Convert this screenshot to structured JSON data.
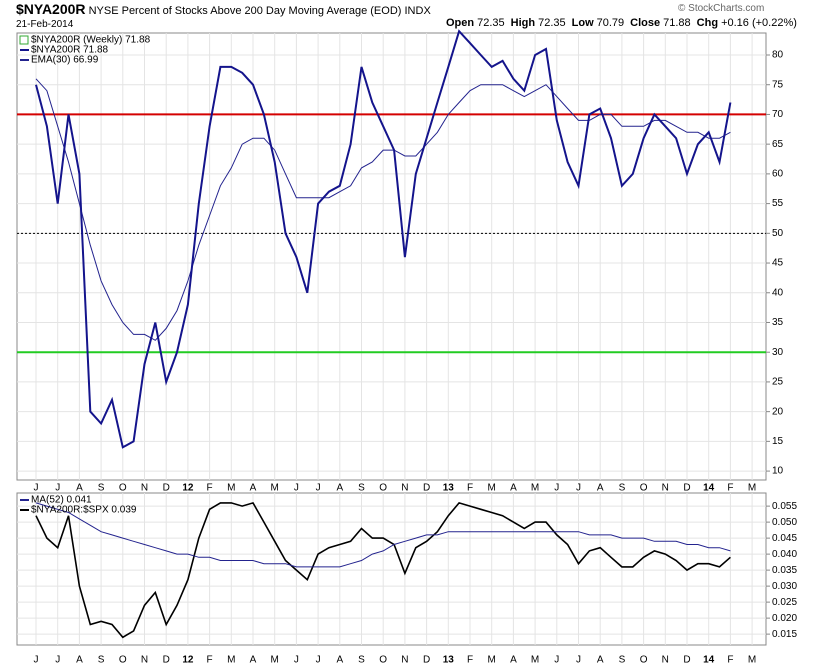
{
  "header": {
    "symbol": "$NYA200R",
    "description": "NYSE Percent of Stocks Above 200 Day Moving Average (EOD)",
    "exchange": "INDX",
    "date": "21-Feb-2014",
    "quote": [
      {
        "label": "Open",
        "value": "72.35"
      },
      {
        "label": "High",
        "value": "72.35"
      },
      {
        "label": "Low",
        "value": "70.79"
      },
      {
        "label": "Close",
        "value": "71.88"
      },
      {
        "label": "Chg",
        "value": "+0.16 (+0.22%)"
      }
    ],
    "credit": "© StockCharts.com"
  },
  "chart_data": [
    {
      "type": "line",
      "title": "$NYA200R (Weekly) 71.88",
      "categories": [
        "J",
        null,
        "J",
        null,
        "A",
        null,
        "S",
        null,
        "O",
        null,
        "N",
        null,
        "D",
        null,
        "12",
        null,
        "F",
        null,
        "M",
        null,
        "A",
        null,
        "M",
        null,
        "J",
        null,
        "J",
        null,
        "A",
        null,
        "S",
        null,
        "O",
        null,
        "N",
        null,
        "D",
        null,
        "13",
        null,
        "F",
        null,
        "M",
        null,
        "A",
        null,
        "M",
        null,
        "J",
        null,
        "J",
        null,
        "A",
        null,
        "S",
        null,
        "O",
        null,
        "N",
        null,
        "D",
        null,
        "14",
        null,
        "F",
        null,
        "M",
        null
      ],
      "series": [
        {
          "name": "EMA(30) 66.99",
          "color": "#23238e",
          "width": 1,
          "values": [
            76,
            74,
            68,
            62,
            55,
            48,
            42,
            38,
            35,
            33,
            33,
            32,
            34,
            37,
            42,
            48,
            53,
            58,
            61,
            65,
            66,
            66,
            64,
            60,
            56,
            56,
            56,
            56,
            57,
            58,
            61,
            62,
            64,
            64,
            63,
            63,
            65,
            67,
            70,
            72,
            74,
            75,
            75,
            75,
            74,
            73,
            74,
            75,
            73,
            71,
            69,
            69,
            70,
            70,
            68,
            68,
            68,
            69,
            69,
            68,
            67,
            67,
            66,
            66,
            67,
            null,
            null,
            null
          ]
        },
        {
          "name": "$NYA200R 71.88",
          "color": "#14148c",
          "width": 2,
          "values": [
            75,
            68,
            55,
            70,
            60,
            20,
            18,
            22,
            14,
            15,
            28,
            35,
            25,
            30,
            38,
            55,
            68,
            78,
            78,
            77,
            75,
            70,
            62,
            50,
            46,
            40,
            55,
            57,
            58,
            65,
            78,
            72,
            68,
            64,
            46,
            60,
            66,
            72,
            78,
            84,
            82,
            80,
            78,
            79,
            76,
            74,
            80,
            81,
            69,
            62,
            58,
            70,
            71,
            66,
            58,
            60,
            66,
            70,
            68,
            66,
            60,
            65,
            67,
            62,
            72,
            null,
            null,
            null
          ]
        }
      ],
      "ylim": [
        8.5,
        83.7
      ],
      "yticks": [
        10,
        15,
        20,
        25,
        30,
        35,
        40,
        45,
        50,
        55,
        60,
        65,
        70,
        75,
        80
      ],
      "reference_lines": [
        {
          "value": 70,
          "color": "#d40000",
          "style": "solid"
        },
        {
          "value": 50,
          "color": "#000000",
          "style": "dotted"
        },
        {
          "value": 30,
          "color": "#22cc22",
          "style": "solid"
        }
      ]
    },
    {
      "type": "line",
      "title": null,
      "categories": [
        "J",
        null,
        "J",
        null,
        "A",
        null,
        "S",
        null,
        "O",
        null,
        "N",
        null,
        "D",
        null,
        "12",
        null,
        "F",
        null,
        "M",
        null,
        "A",
        null,
        "M",
        null,
        "J",
        null,
        "J",
        null,
        "A",
        null,
        "S",
        null,
        "O",
        null,
        "N",
        null,
        "D",
        null,
        "13",
        null,
        "F",
        null,
        "M",
        null,
        "A",
        null,
        "M",
        null,
        "J",
        null,
        "J",
        null,
        "A",
        null,
        "S",
        null,
        "O",
        null,
        "N",
        null,
        "D",
        null,
        "14",
        null,
        "F",
        null,
        "M",
        null
      ],
      "series": [
        {
          "name": "$NYA200R:$SPX 0.039",
          "color": "#000000",
          "width": 1.6,
          "values": [
            0.052,
            0.045,
            0.042,
            0.052,
            0.03,
            0.018,
            0.019,
            0.018,
            0.014,
            0.016,
            0.024,
            0.028,
            0.018,
            0.024,
            0.032,
            0.045,
            0.054,
            0.056,
            0.056,
            0.055,
            0.056,
            0.05,
            0.044,
            0.038,
            0.035,
            0.032,
            0.04,
            0.042,
            0.043,
            0.044,
            0.048,
            0.045,
            0.045,
            0.043,
            0.034,
            0.042,
            0.044,
            0.047,
            0.052,
            0.056,
            0.055,
            0.054,
            0.053,
            0.052,
            0.05,
            0.048,
            0.05,
            0.05,
            0.046,
            0.043,
            0.037,
            0.041,
            0.042,
            0.039,
            0.036,
            0.036,
            0.039,
            0.041,
            0.04,
            0.038,
            0.035,
            0.037,
            0.037,
            0.036,
            0.039,
            null,
            null,
            null
          ]
        },
        {
          "name": "MA(52) 0.041",
          "color": "#23238e",
          "width": 1,
          "values": [
            0.056,
            0.055,
            0.054,
            0.053,
            0.051,
            0.049,
            0.047,
            0.046,
            0.045,
            0.044,
            0.043,
            0.042,
            0.041,
            0.04,
            0.04,
            0.039,
            0.039,
            0.038,
            0.038,
            0.038,
            0.038,
            0.037,
            0.037,
            0.037,
            0.036,
            0.036,
            0.036,
            0.036,
            0.036,
            0.037,
            0.038,
            0.04,
            0.041,
            0.043,
            0.044,
            0.045,
            0.046,
            0.046,
            0.047,
            0.047,
            0.047,
            0.047,
            0.047,
            0.047,
            0.047,
            0.047,
            0.047,
            0.047,
            0.047,
            0.047,
            0.047,
            0.046,
            0.046,
            0.046,
            0.045,
            0.045,
            0.045,
            0.044,
            0.044,
            0.044,
            0.043,
            0.043,
            0.042,
            0.042,
            0.041,
            null,
            null,
            null
          ]
        }
      ],
      "ylim": [
        0.0116,
        0.0591
      ],
      "yticks": [
        0.015,
        {
          "value": 0.02,
          "label": "0.020"
        },
        0.025,
        {
          "value": 0.03,
          "label": "0.030"
        },
        0.035,
        {
          "value": 0.04,
          "label": "0.040"
        },
        0.045,
        {
          "value": 0.05,
          "label": "0.050"
        },
        0.055
      ]
    }
  ]
}
